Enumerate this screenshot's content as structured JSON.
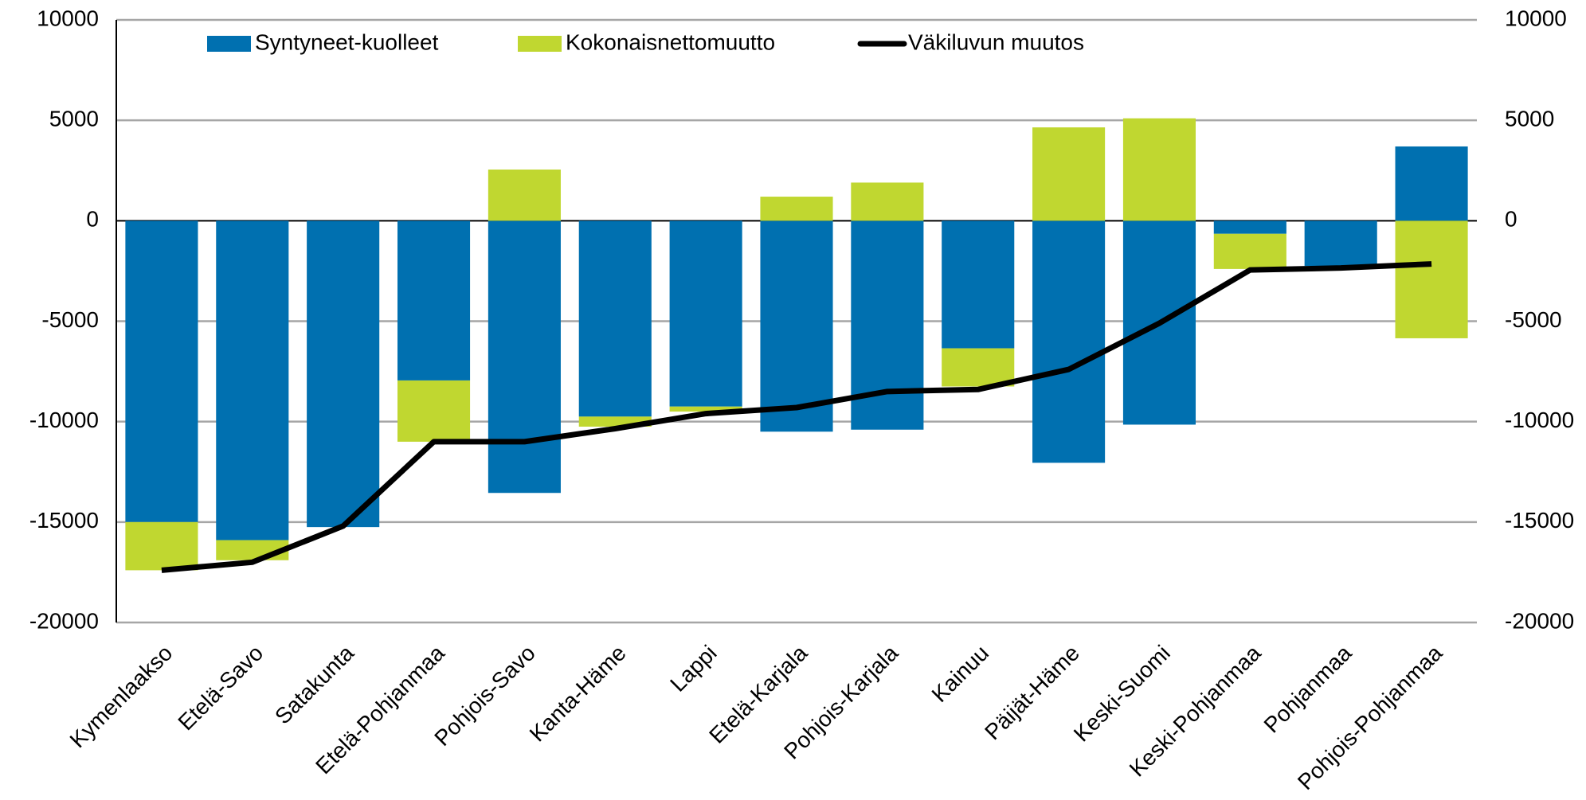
{
  "chart_data": {
    "type": "bar",
    "categories": [
      "Kymenlaakso",
      "Etelä-Savo",
      "Satakunta",
      "Etelä-Pohjanmaa",
      "Pohjois-Savo",
      "Kanta-Häme",
      "Lappi",
      "Etelä-Karjala",
      "Pohjois-Karjala",
      "Kainuu",
      "Päijät-Häme",
      "Keski-Suomi",
      "Keski-Pohjanmaa",
      "Pohjanmaa",
      "Pohjois-Pohjanmaa"
    ],
    "series": [
      {
        "name": "Syntyneet-kuolleet",
        "color": "#0070b0",
        "kind": "bar",
        "values": [
          -15000,
          -15900,
          -15250,
          -7950,
          -13550,
          -9750,
          -9250,
          -10500,
          -10400,
          -6350,
          -12050,
          -10150,
          -650,
          -2250,
          3700
        ]
      },
      {
        "name": "Kokonaisnettomuutto",
        "color": "#c0d730",
        "kind": "bar",
        "values": [
          -2400,
          -1000,
          0,
          -3050,
          2550,
          -500,
          -250,
          1200,
          1900,
          -1900,
          4650,
          5100,
          -1750,
          0,
          -5850
        ]
      },
      {
        "name": "Väkiluvun muutos",
        "color": "#000000",
        "kind": "line",
        "values": [
          -17400,
          -17000,
          -15200,
          -11000,
          -11000,
          -10350,
          -9600,
          -9300,
          -8500,
          -8400,
          -7400,
          -5100,
          -2450,
          -2350,
          -2150
        ]
      }
    ],
    "ylim": [
      -20000,
      10000
    ],
    "yticks": [
      -20000,
      -15000,
      -10000,
      -5000,
      0,
      5000,
      10000
    ],
    "y2lim": [
      -20000,
      10000
    ],
    "y2ticks": [
      -20000,
      -15000,
      -10000,
      -5000,
      0,
      5000,
      10000
    ],
    "grid": true,
    "legend": "top"
  }
}
